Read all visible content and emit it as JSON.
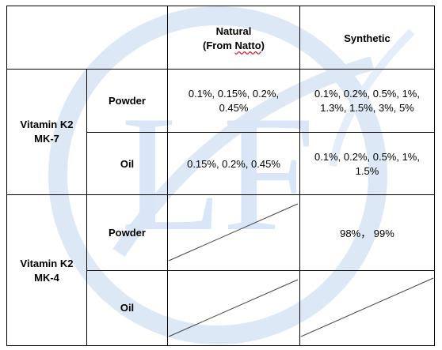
{
  "header": {
    "col_natural_line1": "Natural",
    "col_natural_line2_prefix": "(From ",
    "col_natural_line2_wavy": "Natto",
    "col_natural_line2_suffix": ")",
    "col_synthetic": "Synthetic"
  },
  "groups": [
    {
      "name_line1": "Vitamin K2",
      "name_line2": "MK-7",
      "rows": [
        {
          "form": "Powder",
          "natural": [
            "0.1%, 0.15%, 0.2%,",
            "0.45%"
          ],
          "synthetic": [
            "0.1%, 0.2%, 0.5%, 1%,",
            "1.3%, 1.5%, 3%, 5%"
          ]
        },
        {
          "form": "Oil",
          "natural": [
            "0.15%, 0.2%, 0.45%"
          ],
          "synthetic": [
            "0.1%, 0.2%, 0.5%, 1%,",
            "1.5%"
          ]
        }
      ]
    },
    {
      "name_line1": "Vitamin K2",
      "name_line2": "MK-4",
      "rows": [
        {
          "form": "Powder",
          "natural": null,
          "synthetic": [
            "98%，  99%"
          ]
        },
        {
          "form": "Oil",
          "natural": null,
          "synthetic": null
        }
      ]
    }
  ],
  "watermark": {
    "text": "LF",
    "color": "#d9e6f7"
  }
}
